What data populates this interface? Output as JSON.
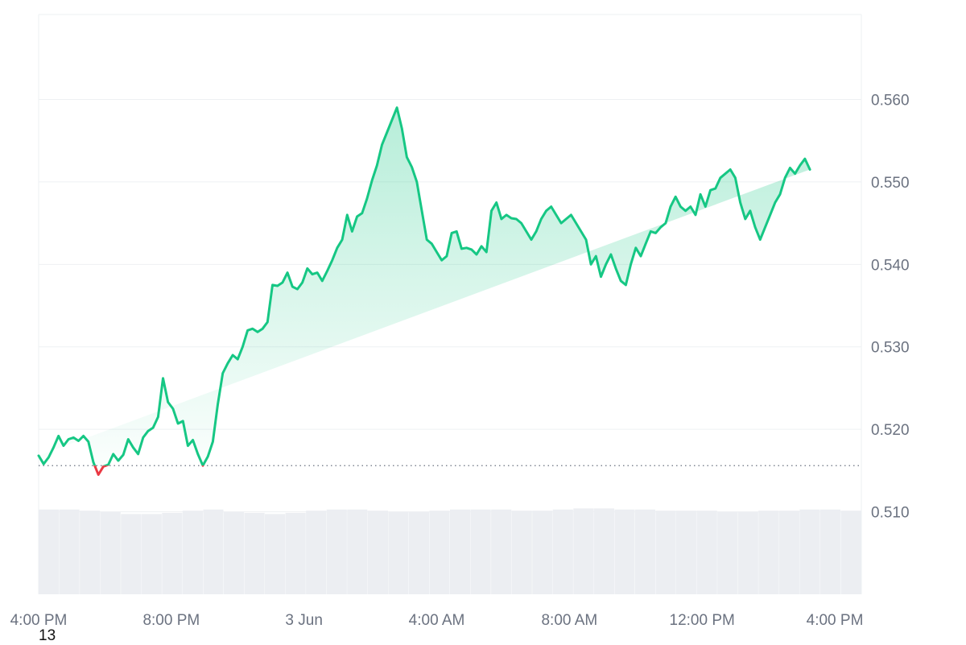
{
  "chart_data": {
    "type": "area",
    "baseline": 0.5156,
    "ylim": [
      0.5,
      0.5703
    ],
    "y_ticks": [
      0.51,
      0.52,
      0.53,
      0.54,
      0.55,
      0.56
    ],
    "y_tick_labels": [
      "0.510",
      "0.520",
      "0.530",
      "0.540",
      "0.550",
      "0.560"
    ],
    "x_tick_labels": [
      "4:00 PM",
      "8:00 PM",
      "3 Jun",
      "4:00 AM",
      "8:00 AM",
      "12:00 PM",
      "4:00 PM"
    ],
    "x_tick_hours": [
      0,
      4,
      8,
      12,
      16,
      20,
      24
    ],
    "x_range_hours": [
      0,
      24.8
    ],
    "grid": true,
    "colors": {
      "up": "#16c784",
      "down": "#ea3943",
      "volume": "#eceef2",
      "grid": "#eef0f3",
      "baseline": "#6b7280"
    },
    "x_hours": [
      0,
      0.15,
      0.3,
      0.45,
      0.6,
      0.75,
      0.9,
      1.05,
      1.2,
      1.35,
      1.5,
      1.65,
      1.8,
      1.95,
      2.1,
      2.25,
      2.4,
      2.55,
      2.7,
      2.85,
      3.0,
      3.15,
      3.3,
      3.45,
      3.6,
      3.75,
      3.9,
      4.05,
      4.2,
      4.35,
      4.5,
      4.65,
      4.8,
      4.95,
      5.1,
      5.25,
      5.4,
      5.55,
      5.7,
      5.85,
      6.0,
      6.15,
      6.3,
      6.45,
      6.6,
      6.75,
      6.9,
      7.05,
      7.2,
      7.35,
      7.5,
      7.65,
      7.8,
      7.95,
      8.1,
      8.25,
      8.4,
      8.55,
      8.7,
      8.85,
      9.0,
      9.15,
      9.3,
      9.45,
      9.6,
      9.75,
      9.9,
      10.05,
      10.2,
      10.35,
      10.5,
      10.65,
      10.8,
      10.95,
      11.1,
      11.25,
      11.4,
      11.55,
      11.7,
      11.85,
      12.0,
      12.15,
      12.3,
      12.45,
      12.6,
      12.75,
      12.9,
      13.05,
      13.2,
      13.35,
      13.5,
      13.65,
      13.8,
      13.95,
      14.1,
      14.25,
      14.4,
      14.55,
      14.7,
      14.85,
      15.0,
      15.15,
      15.3,
      15.45,
      15.6,
      15.75,
      15.9,
      16.05,
      16.2,
      16.35,
      16.5,
      16.65,
      16.8,
      16.95,
      17.1,
      17.25,
      17.4,
      17.55,
      17.7,
      17.85,
      18.0,
      18.15,
      18.3,
      18.45,
      18.6,
      18.75,
      18.9,
      19.05,
      19.2,
      19.35,
      19.5,
      19.65,
      19.8,
      19.95,
      20.1,
      20.25,
      20.4,
      20.55,
      20.7,
      20.85,
      21.0,
      21.15,
      21.3,
      21.45,
      21.6,
      21.75,
      21.9,
      22.05,
      22.2,
      22.35,
      22.5,
      22.65,
      22.8,
      22.95,
      23.1,
      23.25,
      23.4,
      23.55,
      23.7,
      23.85,
      24.0,
      24.15,
      24.3,
      24.45,
      24.6,
      24.75
    ],
    "price": [
      0.5168,
      0.5158,
      0.5166,
      0.5178,
      0.5192,
      0.518,
      0.5188,
      0.519,
      0.5186,
      0.5192,
      0.5185,
      0.516,
      0.5145,
      0.5155,
      0.5157,
      0.517,
      0.5162,
      0.5169,
      0.5188,
      0.5178,
      0.517,
      0.519,
      0.5198,
      0.5202,
      0.5215,
      0.5262,
      0.5233,
      0.5225,
      0.5207,
      0.521,
      0.518,
      0.5187,
      0.517,
      0.5156,
      0.5167,
      0.5185,
      0.523,
      0.5268,
      0.528,
      0.529,
      0.5285,
      0.53,
      0.532,
      0.5322,
      0.5318,
      0.5322,
      0.533,
      0.5375,
      0.5374,
      0.5378,
      0.539,
      0.5373,
      0.537,
      0.5378,
      0.5395,
      0.5388,
      0.539,
      0.538,
      0.5392,
      0.5405,
      0.542,
      0.543,
      0.546,
      0.544,
      0.5458,
      0.5462,
      0.548,
      0.5502,
      0.552,
      0.5545,
      0.556,
      0.5575,
      0.559,
      0.5565,
      0.553,
      0.5518,
      0.55,
      0.5465,
      0.543,
      0.5425,
      0.5415,
      0.5405,
      0.541,
      0.5438,
      0.544,
      0.5419,
      0.542,
      0.5418,
      0.5412,
      0.5422,
      0.5415,
      0.5465,
      0.5475,
      0.5455,
      0.546,
      0.5456,
      0.5455,
      0.545,
      0.544,
      0.543,
      0.544,
      0.5455,
      0.5465,
      0.547,
      0.546,
      0.545,
      0.5455,
      0.546,
      0.545,
      0.544,
      0.543,
      0.54,
      0.541,
      0.5385,
      0.54,
      0.5412,
      0.5395,
      0.538,
      0.5375,
      0.54,
      0.542,
      0.541,
      0.5425,
      0.544,
      0.5438,
      0.5445,
      0.545,
      0.547,
      0.5482,
      0.547,
      0.5465,
      0.547,
      0.546,
      0.5485,
      0.547,
      0.549,
      0.5492,
      0.5505,
      0.551,
      0.5515,
      0.5505,
      0.5475,
      0.5455,
      0.5465,
      0.5445,
      0.543,
      0.5445,
      0.546,
      0.5475,
      0.5485,
      0.5505,
      0.5517,
      0.551,
      0.552,
      0.5528,
      0.5515
    ],
    "volume_level": [
      0.76,
      0.76,
      0.75,
      0.74,
      0.72,
      0.72,
      0.73,
      0.75,
      0.76,
      0.74,
      0.73,
      0.72,
      0.73,
      0.75,
      0.76,
      0.76,
      0.75,
      0.74,
      0.74,
      0.75,
      0.76,
      0.76,
      0.76,
      0.75,
      0.75,
      0.76,
      0.77,
      0.77,
      0.76,
      0.76,
      0.75,
      0.75,
      0.75,
      0.74,
      0.74,
      0.75,
      0.75,
      0.76,
      0.76,
      0.75
    ]
  },
  "footer": {
    "corner_text": "13"
  }
}
